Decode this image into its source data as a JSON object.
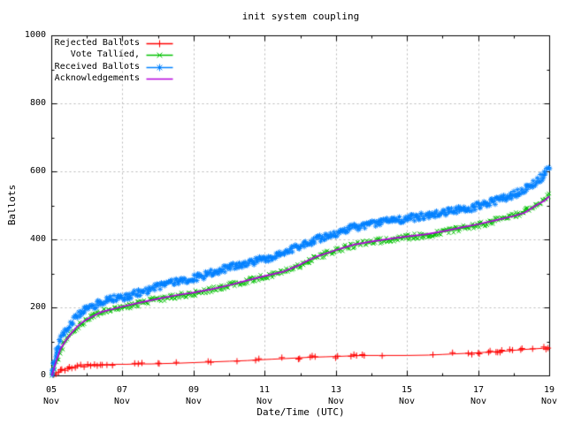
{
  "title": "init system coupling",
  "axes": {
    "x_label": "Date/Time (UTC)",
    "y_label": "Ballots",
    "y_ticks": [
      {
        "value": 0,
        "label": "0"
      },
      {
        "value": 200,
        "label": "200"
      },
      {
        "value": 400,
        "label": "400"
      },
      {
        "value": 600,
        "label": "600"
      },
      {
        "value": 800,
        "label": "800"
      },
      {
        "value": 1000,
        "label": "1000"
      }
    ],
    "y_minor_ticks": [
      100,
      300,
      500,
      700,
      900
    ],
    "x_ticks": [
      {
        "day": 5,
        "label": "05",
        "month": "Nov"
      },
      {
        "day": 7,
        "label": "07",
        "month": "Nov"
      },
      {
        "day": 9,
        "label": "09",
        "month": "Nov"
      },
      {
        "day": 11,
        "label": "11",
        "month": "Nov"
      },
      {
        "day": 13,
        "label": "13",
        "month": "Nov"
      },
      {
        "day": 15,
        "label": "15",
        "month": "Nov"
      },
      {
        "day": 17,
        "label": "17",
        "month": "Nov"
      },
      {
        "day": 19,
        "label": "19",
        "month": "Nov"
      }
    ],
    "x_minor_tick_days": [
      6,
      8,
      10,
      12,
      14,
      16,
      18
    ]
  },
  "chart_data": {
    "type": "line",
    "title": "init system coupling",
    "xlabel": "Date/Time (UTC)",
    "ylabel": "Ballots",
    "ylim": [
      0,
      1000
    ],
    "xlim_day_of_november": [
      5,
      19
    ],
    "grid": true,
    "legend_position": "top-left-inside",
    "series": [
      {
        "name": "Rejected Ballots",
        "color": "#ff0000",
        "marker": "plus",
        "points": [
          [
            5.0,
            0
          ],
          [
            5.1,
            7
          ],
          [
            5.2,
            13
          ],
          [
            5.35,
            19
          ],
          [
            5.5,
            24
          ],
          [
            5.7,
            28
          ],
          [
            5.9,
            30
          ],
          [
            6.1,
            31
          ],
          [
            6.3,
            32
          ],
          [
            6.5,
            33
          ],
          [
            6.8,
            34
          ],
          [
            7.1,
            34
          ],
          [
            7.4,
            35
          ],
          [
            7.8,
            35
          ],
          [
            8.1,
            36
          ],
          [
            8.5,
            37
          ],
          [
            9.0,
            39
          ],
          [
            9.5,
            41
          ],
          [
            10.0,
            43
          ],
          [
            10.5,
            45
          ],
          [
            10.8,
            47
          ],
          [
            11.2,
            49
          ],
          [
            11.6,
            51
          ],
          [
            11.95,
            53
          ],
          [
            12.35,
            55
          ],
          [
            12.7,
            56
          ],
          [
            13.0,
            57
          ],
          [
            13.5,
            59
          ],
          [
            13.8,
            60
          ],
          [
            14.2,
            60
          ],
          [
            15.0,
            60
          ],
          [
            15.6,
            61
          ],
          [
            16.0,
            63
          ],
          [
            16.4,
            65
          ],
          [
            16.8,
            67
          ],
          [
            17.0,
            68
          ],
          [
            17.3,
            70
          ],
          [
            17.6,
            72
          ],
          [
            17.9,
            74
          ],
          [
            18.2,
            77
          ],
          [
            18.5,
            79
          ],
          [
            18.8,
            81
          ],
          [
            19.0,
            83
          ]
        ],
        "marker_days": [
          5.05,
          5.1,
          5.18,
          5.25,
          5.3,
          5.38,
          5.45,
          5.5,
          5.58,
          5.65,
          5.72,
          5.8,
          5.9,
          6.0,
          6.1,
          6.22,
          6.28,
          6.38,
          6.44,
          6.55,
          6.7,
          7.32,
          7.42,
          7.52,
          7.98,
          8.04,
          8.52,
          9.38,
          9.48,
          10.2,
          10.72,
          10.82,
          11.48,
          11.92,
          11.98,
          12.28,
          12.34,
          12.42,
          12.98,
          13.04,
          13.42,
          13.5,
          13.56,
          13.72,
          13.78,
          14.28,
          15.72,
          16.28,
          16.72,
          16.82,
          16.98,
          17.04,
          17.28,
          17.34,
          17.48,
          17.54,
          17.6,
          17.66,
          17.88,
          17.94,
          18.18,
          18.24,
          18.52,
          18.82,
          18.88,
          18.95
        ]
      },
      {
        "name": "Vote Tallied,",
        "color": "#00c000",
        "marker": "cross",
        "points": [
          [
            5.0,
            0
          ],
          [
            5.1,
            30
          ],
          [
            5.2,
            60
          ],
          [
            5.3,
            85
          ],
          [
            5.45,
            108
          ],
          [
            5.6,
            128
          ],
          [
            5.75,
            145
          ],
          [
            5.9,
            158
          ],
          [
            6.05,
            168
          ],
          [
            6.2,
            176
          ],
          [
            6.35,
            184
          ],
          [
            6.5,
            189
          ],
          [
            6.7,
            194
          ],
          [
            6.9,
            198
          ],
          [
            7.1,
            202
          ],
          [
            7.3,
            208
          ],
          [
            7.5,
            214
          ],
          [
            7.7,
            219
          ],
          [
            7.9,
            224
          ],
          [
            8.2,
            229
          ],
          [
            8.5,
            235
          ],
          [
            8.8,
            239
          ],
          [
            9.0,
            242
          ],
          [
            9.3,
            249
          ],
          [
            9.6,
            257
          ],
          [
            9.9,
            264
          ],
          [
            10.2,
            271
          ],
          [
            10.5,
            279
          ],
          [
            10.8,
            287
          ],
          [
            11.0,
            292
          ],
          [
            11.3,
            300
          ],
          [
            11.6,
            310
          ],
          [
            11.9,
            321
          ],
          [
            12.2,
            337
          ],
          [
            12.5,
            351
          ],
          [
            12.8,
            361
          ],
          [
            13.0,
            368
          ],
          [
            13.3,
            379
          ],
          [
            13.6,
            387
          ],
          [
            13.9,
            393
          ],
          [
            14.2,
            397
          ],
          [
            14.5,
            401
          ],
          [
            14.8,
            405
          ],
          [
            15.1,
            409
          ],
          [
            15.4,
            413
          ],
          [
            15.7,
            417
          ],
          [
            16.0,
            423
          ],
          [
            16.3,
            429
          ],
          [
            16.6,
            435
          ],
          [
            16.9,
            441
          ],
          [
            17.2,
            449
          ],
          [
            17.5,
            457
          ],
          [
            17.8,
            465
          ],
          [
            18.1,
            475
          ],
          [
            18.4,
            489
          ],
          [
            18.7,
            507
          ],
          [
            18.85,
            517
          ],
          [
            19.0,
            534
          ]
        ]
      },
      {
        "name": "Received Ballots",
        "color": "#0080ff",
        "marker": "asterisk",
        "points": [
          [
            5.0,
            2
          ],
          [
            5.05,
            25
          ],
          [
            5.1,
            55
          ],
          [
            5.2,
            95
          ],
          [
            5.3,
            118
          ],
          [
            5.45,
            140
          ],
          [
            5.6,
            163
          ],
          [
            5.75,
            179
          ],
          [
            5.9,
            191
          ],
          [
            6.05,
            200
          ],
          [
            6.2,
            207
          ],
          [
            6.35,
            216
          ],
          [
            6.5,
            221
          ],
          [
            6.7,
            225
          ],
          [
            6.9,
            228
          ],
          [
            7.1,
            232
          ],
          [
            7.3,
            239
          ],
          [
            7.5,
            246
          ],
          [
            7.7,
            253
          ],
          [
            7.9,
            260
          ],
          [
            8.1,
            266
          ],
          [
            8.3,
            271
          ],
          [
            8.5,
            276
          ],
          [
            8.7,
            280
          ],
          [
            8.9,
            284
          ],
          [
            9.1,
            289
          ],
          [
            9.3,
            295
          ],
          [
            9.5,
            303
          ],
          [
            9.7,
            310
          ],
          [
            9.9,
            316
          ],
          [
            10.1,
            321
          ],
          [
            10.3,
            327
          ],
          [
            10.5,
            332
          ],
          [
            10.7,
            338
          ],
          [
            10.9,
            343
          ],
          [
            11.1,
            348
          ],
          [
            11.3,
            353
          ],
          [
            11.5,
            360
          ],
          [
            11.7,
            372
          ],
          [
            11.9,
            378
          ],
          [
            12.1,
            385
          ],
          [
            12.3,
            393
          ],
          [
            12.5,
            402
          ],
          [
            12.7,
            411
          ],
          [
            12.9,
            417
          ],
          [
            13.1,
            422
          ],
          [
            13.3,
            430
          ],
          [
            13.5,
            436
          ],
          [
            13.7,
            441
          ],
          [
            13.9,
            446
          ],
          [
            14.1,
            450
          ],
          [
            14.3,
            453
          ],
          [
            14.5,
            456
          ],
          [
            14.7,
            459
          ],
          [
            14.9,
            461
          ],
          [
            15.1,
            463
          ],
          [
            15.3,
            467
          ],
          [
            15.5,
            471
          ],
          [
            15.7,
            474
          ],
          [
            15.9,
            477
          ],
          [
            16.1,
            481
          ],
          [
            16.3,
            485
          ],
          [
            16.5,
            489
          ],
          [
            16.7,
            493
          ],
          [
            16.9,
            497
          ],
          [
            17.1,
            503
          ],
          [
            17.3,
            509
          ],
          [
            17.5,
            515
          ],
          [
            17.7,
            521
          ],
          [
            17.9,
            529
          ],
          [
            18.1,
            539
          ],
          [
            18.3,
            551
          ],
          [
            18.5,
            563
          ],
          [
            18.7,
            578
          ],
          [
            18.85,
            593
          ],
          [
            19.0,
            616
          ]
        ]
      },
      {
        "name": "Acknowledgements",
        "color": "#b400dc",
        "marker": "none",
        "points": [
          [
            5.0,
            0
          ],
          [
            5.1,
            35
          ],
          [
            5.25,
            80
          ],
          [
            5.4,
            105
          ],
          [
            5.55,
            125
          ],
          [
            5.7,
            143
          ],
          [
            5.85,
            157
          ],
          [
            6.0,
            167
          ],
          [
            6.2,
            178
          ],
          [
            6.4,
            188
          ],
          [
            6.7,
            196
          ],
          [
            7.0,
            204
          ],
          [
            7.5,
            216
          ],
          [
            8.0,
            227
          ],
          [
            8.5,
            237
          ],
          [
            9.0,
            245
          ],
          [
            9.5,
            255
          ],
          [
            10.0,
            267
          ],
          [
            10.5,
            281
          ],
          [
            11.0,
            294
          ],
          [
            11.5,
            306
          ],
          [
            11.9,
            323
          ],
          [
            12.2,
            339
          ],
          [
            12.5,
            353
          ],
          [
            12.8,
            363
          ],
          [
            13.0,
            370
          ],
          [
            13.5,
            386
          ],
          [
            14.0,
            395
          ],
          [
            14.5,
            403
          ],
          [
            15.0,
            410
          ],
          [
            15.5,
            416
          ],
          [
            16.0,
            425
          ],
          [
            16.5,
            436
          ],
          [
            17.0,
            446
          ],
          [
            17.5,
            458
          ],
          [
            18.0,
            470
          ],
          [
            18.3,
            480
          ],
          [
            18.6,
            500
          ],
          [
            18.85,
            515
          ],
          [
            19.0,
            528
          ]
        ]
      }
    ]
  }
}
